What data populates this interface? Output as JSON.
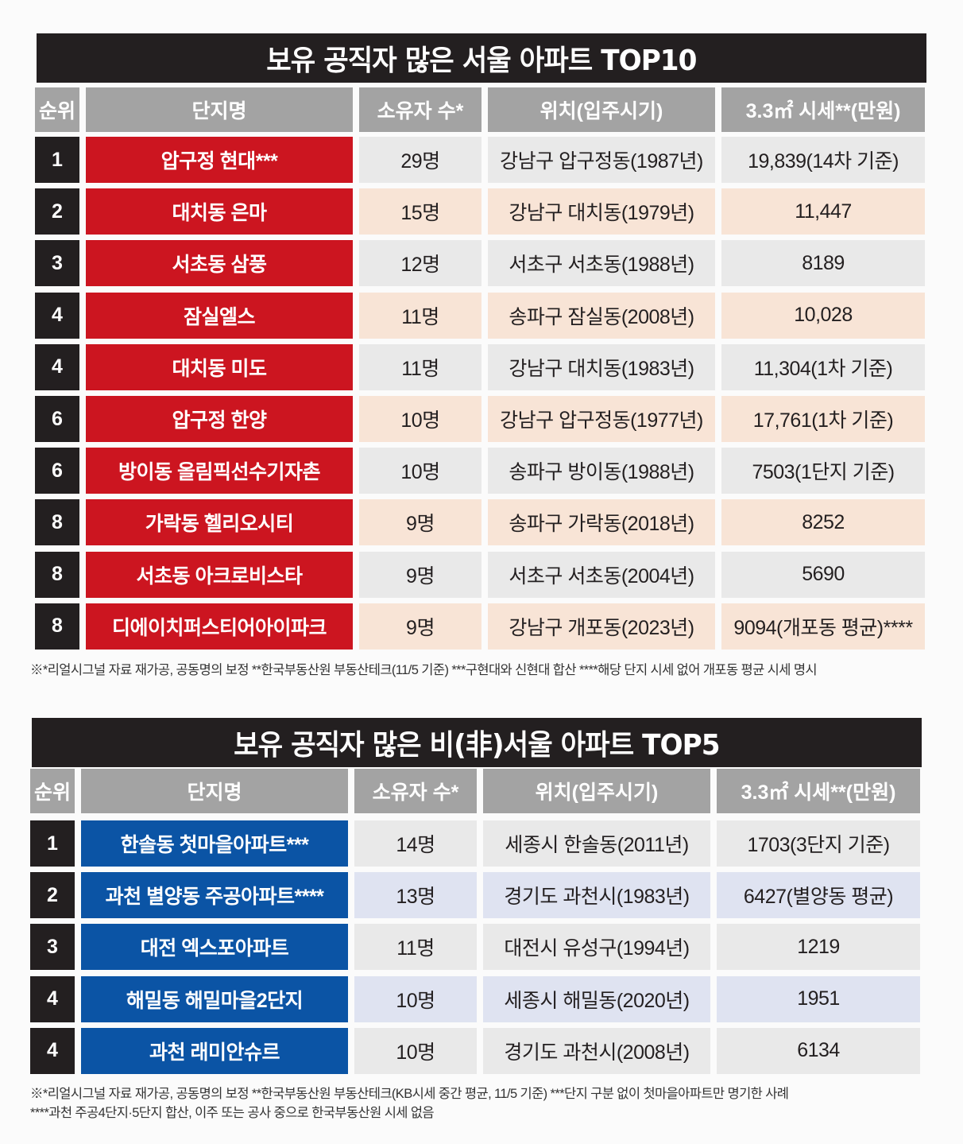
{
  "table1": {
    "title": "보유 공직자 많은 서울 아파트 TOP10",
    "headers": [
      "순위",
      "단지명",
      "소유자 수*",
      "위치(입주시기)",
      "3.3㎡ 시세**(만원)"
    ],
    "rows": [
      {
        "rank": "1",
        "name": "압구정 현대***",
        "owners": "29명",
        "location": "강남구 압구정동(1987년)",
        "price": "19,839(14차 기준)"
      },
      {
        "rank": "2",
        "name": "대치동 은마",
        "owners": "15명",
        "location": "강남구 대치동(1979년)",
        "price": "11,447"
      },
      {
        "rank": "3",
        "name": "서초동 삼풍",
        "owners": "12명",
        "location": "서초구 서초동(1988년)",
        "price": "8189"
      },
      {
        "rank": "4",
        "name": "잠실엘스",
        "owners": "11명",
        "location": "송파구 잠실동(2008년)",
        "price": "10,028"
      },
      {
        "rank": "4",
        "name": "대치동 미도",
        "owners": "11명",
        "location": "강남구 대치동(1983년)",
        "price": "11,304(1차 기준)"
      },
      {
        "rank": "6",
        "name": "압구정 한양",
        "owners": "10명",
        "location": "강남구 압구정동(1977년)",
        "price": "17,761(1차 기준)"
      },
      {
        "rank": "6",
        "name": "방이동 올림픽선수기자촌",
        "owners": "10명",
        "location": "송파구 방이동(1988년)",
        "price": "7503(1단지 기준)"
      },
      {
        "rank": "8",
        "name": "가락동 헬리오시티",
        "owners": "9명",
        "location": "송파구 가락동(2018년)",
        "price": "8252"
      },
      {
        "rank": "8",
        "name": "서초동 아크로비스타",
        "owners": "9명",
        "location": "서초구 서초동(2004년)",
        "price": "5690"
      },
      {
        "rank": "8",
        "name": "디에이치퍼스티어아이파크",
        "owners": "9명",
        "location": "강남구 개포동(2023년)",
        "price": "9094(개포동 평균)****"
      }
    ],
    "note": "※*리얼시그널 자료 재가공, 공동명의 보정 **한국부동산원 부동산테크(11/5 기준) ***구현대와 신현대 합산 ****해당 단지 시세 없어 개포동 평균 시세 명시"
  },
  "table2": {
    "title": "보유 공직자 많은 비(非)서울 아파트 TOP5",
    "headers": [
      "순위",
      "단지명",
      "소유자 수*",
      "위치(입주시기)",
      "3.3㎡ 시세**(만원)"
    ],
    "rows": [
      {
        "rank": "1",
        "name": "한솔동 첫마을아파트***",
        "owners": "14명",
        "location": "세종시 한솔동(2011년)",
        "price": "1703(3단지 기준)"
      },
      {
        "rank": "2",
        "name": "과천 별양동 주공아파트****",
        "owners": "13명",
        "location": "경기도 과천시(1983년)",
        "price": "6427(별양동 평균)"
      },
      {
        "rank": "3",
        "name": "대전 엑스포아파트",
        "owners": "11명",
        "location": "대전시 유성구(1994년)",
        "price": "1219"
      },
      {
        "rank": "4",
        "name": "해밀동 해밀마을2단지",
        "owners": "10명",
        "location": "세종시 해밀동(2020년)",
        "price": "1951"
      },
      {
        "rank": "4",
        "name": "과천 래미안슈르",
        "owners": "10명",
        "location": "경기도 과천시(2008년)",
        "price": "6134"
      }
    ],
    "note_line1": "※*리얼시그널 자료 재가공, 공동명의 보정 **한국부동산원 부동산테크(KB시세 중간 평균, 11/5 기준) ***단지 구분 없이 첫마을아파트만 명기한 사례",
    "note_line2": "****과천 주공4단지·5단지 합산, 이주 또는 공사 중으로 한국부동산원 시세 없음"
  },
  "colors": {
    "header_gray": "#a3a3a3",
    "rank_black": "#231f20",
    "name_red": "#cc1520",
    "name_blue": "#0b54a5",
    "row_gray": "#e9e9e9",
    "row_peach": "#f8e4d6",
    "row_lavender": "#dfe3f1"
  }
}
